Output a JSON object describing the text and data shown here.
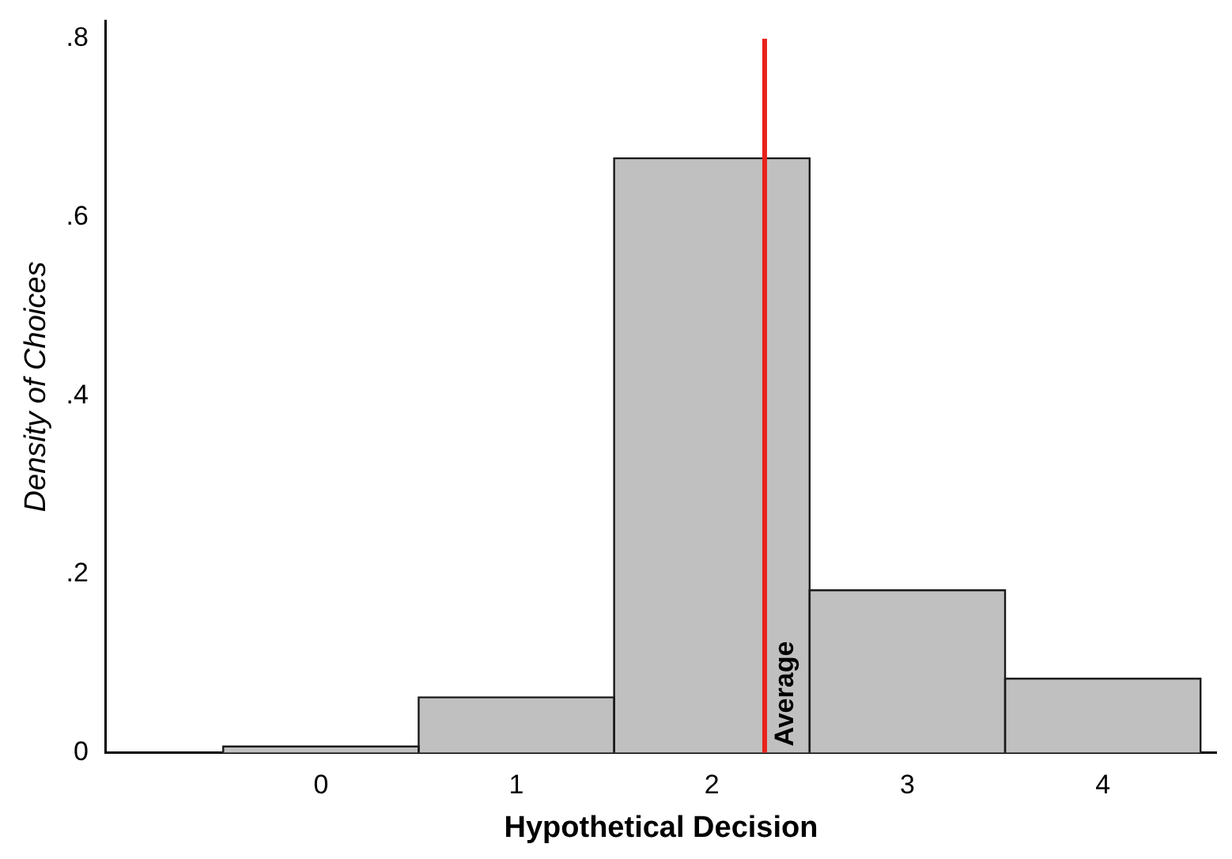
{
  "chart_data": {
    "type": "histogram",
    "xlabel": "Hypothetical Decision",
    "ylabel": "Density of Choices",
    "bins": [
      -0.5,
      0.5,
      1.5,
      2.5,
      3.5,
      4.5
    ],
    "values": [
      0.007,
      0.062,
      0.666,
      0.182,
      0.083
    ],
    "color": "#c0c0c0",
    "xlim": [
      -1.1,
      4.58
    ],
    "xticks": [
      0,
      1,
      2,
      3,
      4
    ],
    "ylim": [
      0,
      0.82
    ],
    "yticks": [
      0,
      {
        "value": 0.2,
        "label": ".2"
      },
      {
        "value": 0.4,
        "label": ".4"
      },
      {
        "value": 0.6,
        "label": ".6"
      },
      {
        "value": 0.8,
        "label": ".8"
      }
    ],
    "grid": false,
    "legend": false,
    "ref_lines": [
      {
        "axis": "x",
        "value": 2.27,
        "label": "Average",
        "color": "#e8231b"
      }
    ]
  }
}
